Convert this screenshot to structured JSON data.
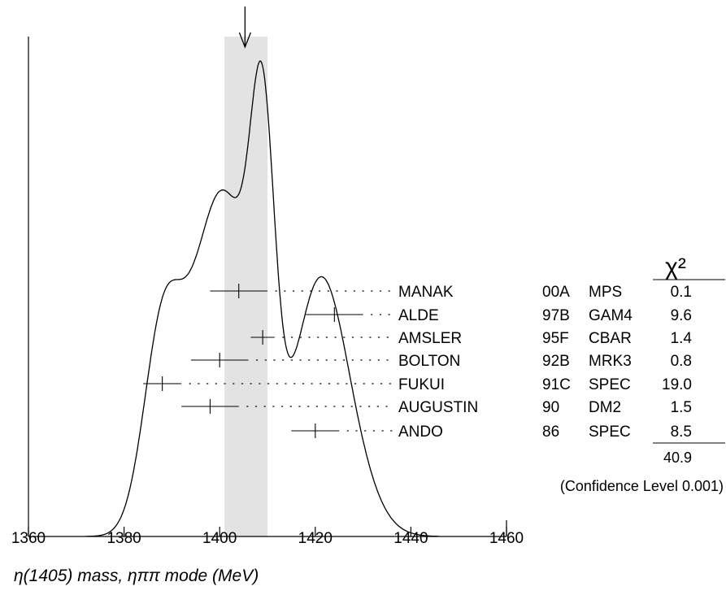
{
  "chart_data": {
    "type": "ideogram",
    "xlabel": "η(1405) mass, ηππ mode (MeV)",
    "xlim": [
      1360,
      1460
    ],
    "x_ticks": [
      1360,
      1380,
      1400,
      1420,
      1440,
      1460
    ],
    "tick_labels": [
      "1360",
      "1380",
      "1400",
      "1420",
      "1440",
      "1460"
    ],
    "average_band": [
      1401,
      1410
    ],
    "average_arrow_x": 1405.3,
    "chi2_header": "χ²",
    "measurements": [
      {
        "author": "MANAK",
        "year": "00A",
        "experiment": "MPS",
        "chi2": "0.1",
        "value": 1404,
        "err_low": 6,
        "err_high": 6
      },
      {
        "author": "ALDE",
        "year": "97B",
        "experiment": "GAM4",
        "chi2": "9.6",
        "value": 1424,
        "err_low": 6,
        "err_high": 6
      },
      {
        "author": "AMSLER",
        "year": "95F",
        "experiment": "CBAR",
        "chi2": "1.4",
        "value": 1409,
        "err_low": 2.5,
        "err_high": 2.5
      },
      {
        "author": "BOLTON",
        "year": "92B",
        "experiment": "MRK3",
        "chi2": "0.8",
        "value": 1400,
        "err_low": 6,
        "err_high": 6
      },
      {
        "author": "FUKUI",
        "year": "91C",
        "experiment": "SPEC",
        "chi2": "19.0",
        "value": 1388,
        "err_low": 4,
        "err_high": 4
      },
      {
        "author": "AUGUSTIN",
        "year": "90",
        "experiment": "DM2",
        "chi2": "1.5",
        "value": 1398,
        "err_low": 6,
        "err_high": 6
      },
      {
        "author": "ANDO",
        "year": "86",
        "experiment": "SPEC",
        "chi2": "8.5",
        "value": 1420,
        "err_low": 5,
        "err_high": 5
      }
    ],
    "chi2_total": "40.9",
    "confidence_level": "(Confidence Level  0.001)"
  }
}
